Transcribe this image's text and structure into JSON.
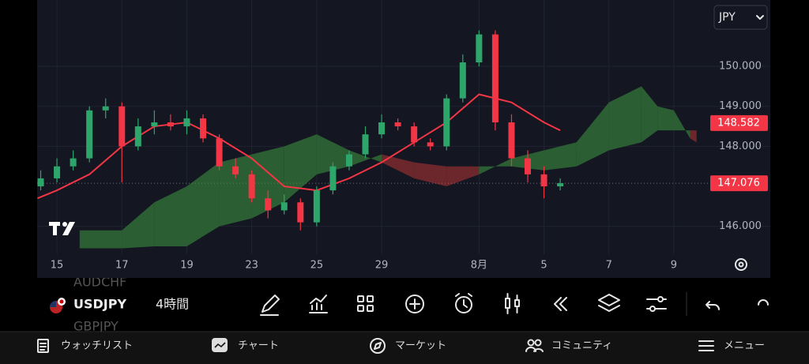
{
  "symbol_list": [
    "AUDCHF",
    "USDJPY",
    "GBPJPY"
  ],
  "interval": "4時間",
  "currency": "JPY",
  "nav": [
    "ウォッチリスト",
    "チャート",
    "マーケット",
    "コミュニティ",
    "メニュー"
  ],
  "chart_data": {
    "type": "candlestick",
    "x": [
      -0.5,
      0,
      0.5,
      1,
      1.5,
      2,
      2.5,
      3,
      3.5,
      4,
      4.5,
      5,
      5.5,
      6,
      6.5,
      7,
      7.5,
      8,
      8.5,
      9,
      9.5,
      10,
      10.5,
      11,
      11.5,
      12,
      12.5,
      13,
      13.5,
      14,
      14.5,
      15,
      15.5
    ],
    "open": [
      147.0,
      147.2,
      147.5,
      147.7,
      148.9,
      149.0,
      148.0,
      148.5,
      148.6,
      148.5,
      148.7,
      148.2,
      147.5,
      147.3,
      146.7,
      146.4,
      146.6,
      146.1,
      146.9,
      147.5,
      147.8,
      148.3,
      148.6,
      148.5,
      148.1,
      148.0,
      149.2,
      150.1,
      150.8,
      148.6,
      147.7,
      147.3,
      147.0
    ],
    "high": [
      147.4,
      147.7,
      147.9,
      149.0,
      149.2,
      149.1,
      148.7,
      148.9,
      148.8,
      148.9,
      148.8,
      148.3,
      147.7,
      147.4,
      146.9,
      146.8,
      146.7,
      147.0,
      147.6,
      147.9,
      148.5,
      148.8,
      148.7,
      148.6,
      148.2,
      149.3,
      150.3,
      150.9,
      150.9,
      148.8,
      147.9,
      147.5,
      147.2
    ],
    "low": [
      146.9,
      147.1,
      147.4,
      147.6,
      148.7,
      147.1,
      147.9,
      148.3,
      148.4,
      148.3,
      148.1,
      147.4,
      147.2,
      146.6,
      146.2,
      146.3,
      145.9,
      146.0,
      146.8,
      147.4,
      147.7,
      148.2,
      148.4,
      148.0,
      147.9,
      147.9,
      149.1,
      150.0,
      148.4,
      147.5,
      147.1,
      146.7,
      146.9
    ],
    "close": [
      147.2,
      147.5,
      147.7,
      148.9,
      149.0,
      148.0,
      148.5,
      148.6,
      148.5,
      148.7,
      148.2,
      147.5,
      147.3,
      146.7,
      146.4,
      146.6,
      146.1,
      146.9,
      147.5,
      147.8,
      148.3,
      148.6,
      148.5,
      148.1,
      148.0,
      149.2,
      150.1,
      150.8,
      148.6,
      147.7,
      147.3,
      147.0,
      147.08
    ],
    "up_color": "#2ea66b",
    "down_color": "#f23645",
    "ma": {
      "color": "#f23645",
      "x": [
        -0.6,
        0,
        1,
        2,
        3,
        4,
        5,
        6,
        7,
        8,
        9,
        10,
        11,
        12,
        13,
        14,
        15,
        15.5
      ],
      "values": [
        146.7,
        146.9,
        147.3,
        148.0,
        148.5,
        148.6,
        148.2,
        147.7,
        147.0,
        146.9,
        147.2,
        147.6,
        148.1,
        148.6,
        149.3,
        149.1,
        148.6,
        148.4
      ]
    },
    "cloud": {
      "bull_color": "#2f6b35",
      "bear_color": "#7a2a2e",
      "x": [
        0.7,
        2,
        3,
        4,
        5,
        6,
        7,
        8,
        9,
        10,
        11,
        12,
        13,
        14,
        15,
        16,
        17,
        18,
        18.5,
        19,
        19.5,
        19.7
      ],
      "span_a": [
        145.9,
        145.9,
        146.6,
        147.0,
        147.6,
        147.8,
        148.0,
        148.3,
        147.9,
        147.6,
        147.2,
        147.0,
        147.3,
        147.7,
        147.9,
        148.1,
        149.1,
        149.5,
        149.0,
        148.9,
        148.2,
        148.1
      ],
      "span_b": [
        145.45,
        145.45,
        145.5,
        145.5,
        146.0,
        146.2,
        146.6,
        147.3,
        147.5,
        147.8,
        147.6,
        147.5,
        147.5,
        147.5,
        147.4,
        147.5,
        147.9,
        148.1,
        148.4,
        148.4,
        148.4,
        148.4
      ]
    },
    "last_price": 147.076,
    "ma_price": 148.582,
    "ylim": [
      144.71,
      151.66
    ],
    "yticks": [
      {
        "value": 146,
        "label": "146.000"
      },
      {
        "value": 148,
        "label": "148.000"
      },
      {
        "value": 149,
        "label": "149.000"
      },
      {
        "value": 150,
        "label": "150.000"
      }
    ],
    "xlim": [
      -0.61,
      21.97
    ],
    "xticks": [
      {
        "value": 0,
        "label": "15"
      },
      {
        "value": 2,
        "label": "17"
      },
      {
        "value": 4,
        "label": "19"
      },
      {
        "value": 6,
        "label": "23"
      },
      {
        "value": 8,
        "label": "25"
      },
      {
        "value": 10,
        "label": "29"
      },
      {
        "value": 13,
        "label": "8月"
      },
      {
        "value": 15,
        "label": "5"
      },
      {
        "value": 17,
        "label": "7"
      },
      {
        "value": 19,
        "label": "9"
      }
    ],
    "grid": true
  }
}
